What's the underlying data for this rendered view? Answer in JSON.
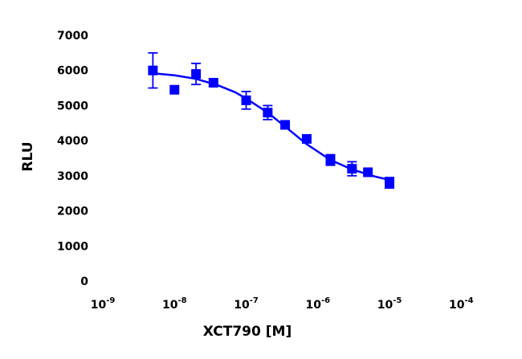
{
  "chart_data": {
    "type": "scatter",
    "title": "",
    "xlabel": "XCT790 [M]",
    "ylabel": "RLU",
    "x_scale": "log",
    "xlim": [
      1e-09,
      1e-05
    ],
    "ylim": [
      0,
      7000
    ],
    "x_ticks": [
      1e-09,
      1e-08,
      1e-07,
      1e-06,
      1e-05,
      0.0001
    ],
    "x_tick_exponents": [
      "-9",
      "-8",
      "-7",
      "-6",
      "-5",
      "-4"
    ],
    "y_ticks": [
      0,
      1000,
      2000,
      3000,
      4000,
      5000,
      6000,
      7000
    ],
    "y_tick_labels": [
      "0",
      "1000",
      "2000",
      "3000",
      "4000",
      "5000",
      "6000",
      "7000"
    ],
    "grid": false,
    "legend": "none",
    "marker": "square",
    "color": "#0000ff",
    "series": [
      {
        "points": [
          {
            "x": 5e-09,
            "y": 6000,
            "err": 500
          },
          {
            "x": 1e-08,
            "y": 5450,
            "err": 0
          },
          {
            "x": 2e-08,
            "y": 5900,
            "err": 300
          },
          {
            "x": 3.5e-08,
            "y": 5650,
            "err": 0
          },
          {
            "x": 1e-07,
            "y": 5150,
            "err": 250
          },
          {
            "x": 2e-07,
            "y": 4800,
            "err": 200
          },
          {
            "x": 3.5e-07,
            "y": 4450,
            "err": 0
          },
          {
            "x": 7e-07,
            "y": 4050,
            "err": 0
          },
          {
            "x": 1.5e-06,
            "y": 3450,
            "err": 150
          },
          {
            "x": 3e-06,
            "y": 3200,
            "err": 200
          },
          {
            "x": 5e-06,
            "y": 3100,
            "err": 0
          },
          {
            "x": 1e-05,
            "y": 2800,
            "err": 150
          }
        ],
        "fit": {
          "x": [
            5e-09,
            1e-08,
            2e-08,
            4e-08,
            7e-08,
            1e-07,
            2e-07,
            3.5e-07,
            7e-07,
            1.5e-06,
            3e-06,
            6e-06,
            1e-05
          ],
          "y": [
            5920,
            5860,
            5760,
            5580,
            5380,
            5200,
            4800,
            4400,
            3900,
            3450,
            3180,
            2990,
            2880
          ]
        }
      }
    ]
  }
}
